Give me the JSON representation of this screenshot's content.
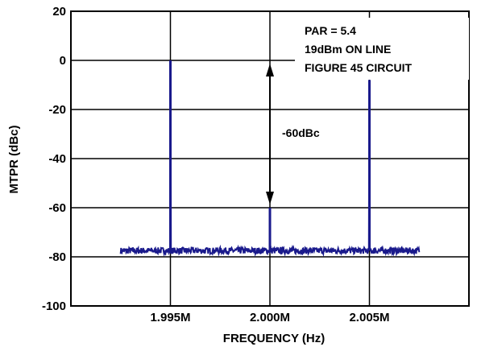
{
  "chart_data": {
    "type": "line",
    "xlabel": "FREQUENCY (Hz)",
    "ylabel": "MTPR (dBc)",
    "xlim": [
      1.99,
      2.01
    ],
    "ylim": [
      -100,
      20
    ],
    "x_ticks": [
      {
        "value": 1.995,
        "label": "1.995M"
      },
      {
        "value": 2.0,
        "label": "2.000M"
      },
      {
        "value": 2.005,
        "label": "2.005M"
      }
    ],
    "y_ticks": [
      {
        "value": 20,
        "label": "20"
      },
      {
        "value": 0,
        "label": "0"
      },
      {
        "value": -20,
        "label": "-20"
      },
      {
        "value": -40,
        "label": "-40"
      },
      {
        "value": -60,
        "label": "-60"
      },
      {
        "value": -80,
        "label": "-80"
      },
      {
        "value": -100,
        "label": "-100"
      }
    ],
    "grid": true,
    "series": [
      {
        "color": "#1a1a8c",
        "x_range": [
          1.9925,
          2.0075
        ],
        "noise_floor": -77.5,
        "peaks": [
          {
            "x": 1.995,
            "y": 0
          },
          {
            "x": 2.0,
            "y": -60
          },
          {
            "x": 2.005,
            "y": -8
          }
        ]
      }
    ],
    "annotations": [
      {
        "id": "par",
        "text": "PAR = 5.4"
      },
      {
        "id": "level",
        "text": "19dBm ON LINE"
      },
      {
        "id": "figure",
        "text": "FIGURE 45 CIRCUIT"
      },
      {
        "id": "delta",
        "text": "-60dBc"
      }
    ],
    "delta_arrow": {
      "x": 2.0,
      "y_top": 0,
      "y_bottom": -60
    }
  }
}
